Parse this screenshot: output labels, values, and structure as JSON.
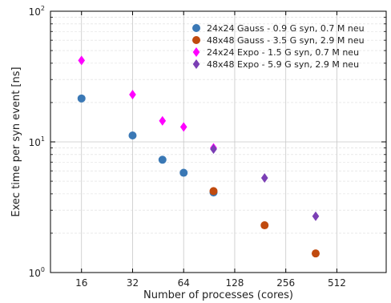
{
  "chart_data": {
    "type": "scatter",
    "xlabel": "Number of processes (cores)",
    "ylabel": "Exec time per syn event [ns]",
    "x_scale": "log2",
    "y_scale": "log10",
    "xlim": [
      10.5,
      1000
    ],
    "ylim": [
      1,
      100
    ],
    "x_ticks": [
      16,
      32,
      64,
      128,
      256,
      512
    ],
    "x_tick_labels": [
      "16",
      "32",
      "64",
      "128",
      "256",
      "512"
    ],
    "y_ticks": [
      1,
      10,
      100
    ],
    "y_tick_labels": [
      {
        "base": "10",
        "exp": "0"
      },
      {
        "base": "10",
        "exp": "1"
      },
      {
        "base": "10",
        "exp": "2"
      }
    ],
    "grid": true,
    "legend_position": "top-right",
    "series": [
      {
        "name": "24x24 Gauss - 0.9 G syn, 0.7 M neu",
        "color": "#3a78b5",
        "marker": "circle",
        "x": [
          16,
          32,
          48,
          64,
          96
        ],
        "y": [
          21.5,
          11.2,
          7.3,
          5.8,
          4.1
        ]
      },
      {
        "name": "48x48 Gauss - 3.5 G syn, 2.9 M neu",
        "color": "#c04a0e",
        "marker": "circle",
        "x": [
          96,
          192,
          384
        ],
        "y": [
          4.2,
          2.3,
          1.4
        ]
      },
      {
        "name": "24x24 Expo - 1.5 G syn, 0.7 M neu",
        "color": "#ff00ff",
        "marker": "diamond",
        "x": [
          16,
          32,
          48,
          64,
          96
        ],
        "y": [
          42,
          23,
          14.5,
          13,
          9
        ]
      },
      {
        "name": "48x48 Expo - 5.9 G syn, 2.9 M neu",
        "color": "#7b3fb5",
        "marker": "diamond",
        "x": [
          96,
          192,
          384
        ],
        "y": [
          8.8,
          5.3,
          2.7
        ]
      }
    ]
  }
}
